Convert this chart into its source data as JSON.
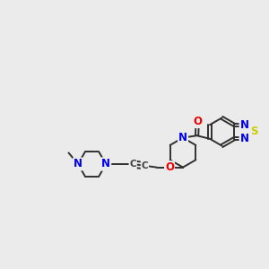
{
  "bg_color": "#ebebeb",
  "atom_colors": {
    "N": "#0000ee",
    "O": "#ee0000",
    "S": "#cccc00",
    "C": "#404040"
  },
  "bond_color": "#303030",
  "bond_lw": 1.4,
  "font_size": 8.5,
  "xlim": [
    0,
    10
  ],
  "ylim": [
    0,
    10
  ],
  "figsize": [
    3.0,
    3.0
  ],
  "dpi": 100,
  "scale": 0.85
}
